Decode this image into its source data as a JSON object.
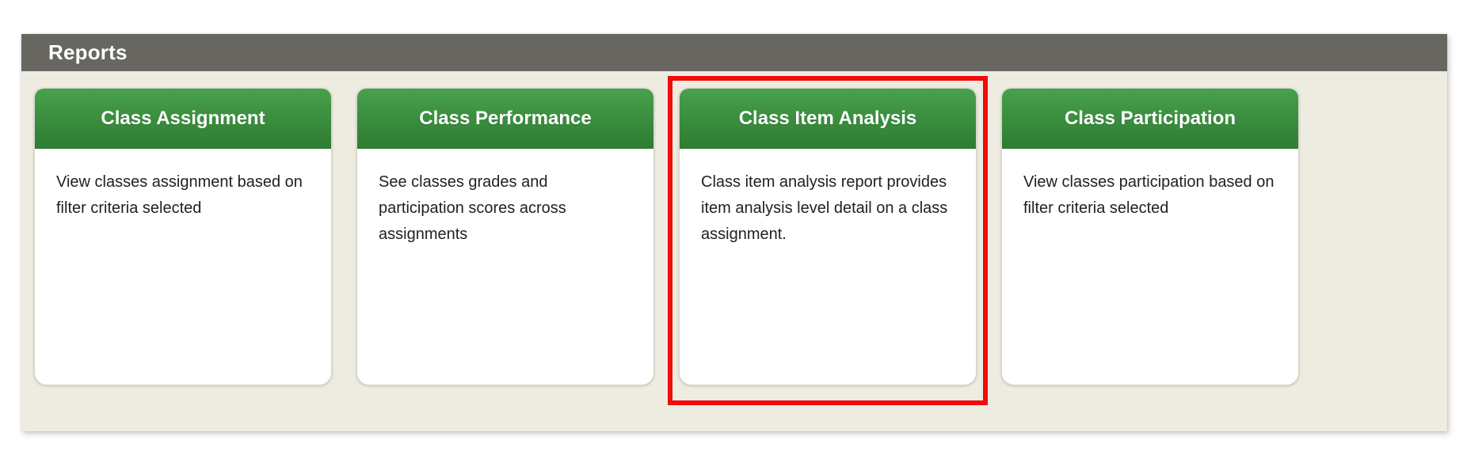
{
  "theme": {
    "panel-bg": "#eeebe0",
    "bar-bg": "#676660",
    "green-top": "#47a14b",
    "green-bottom": "#2e7b32",
    "annotation-red": "#f10b0b",
    "card-text": "#212121"
  },
  "header": {
    "title": "Reports"
  },
  "cards": [
    {
      "title": "Class Assignment",
      "description": "View classes assignment based on filter criteria selected",
      "highlighted": false
    },
    {
      "title": "Class Performance",
      "description": "See classes grades and participation scores across assignments",
      "highlighted": false
    },
    {
      "title": "Class Item Analysis",
      "description": "Class item analysis report provides item analysis level detail on a class assignment.",
      "highlighted": true
    },
    {
      "title": "Class Participation",
      "description": "View classes participation based on filter criteria selected",
      "highlighted": false
    }
  ],
  "annotation": {
    "shape": "red-rectangle",
    "target": "Class Item Analysis"
  }
}
